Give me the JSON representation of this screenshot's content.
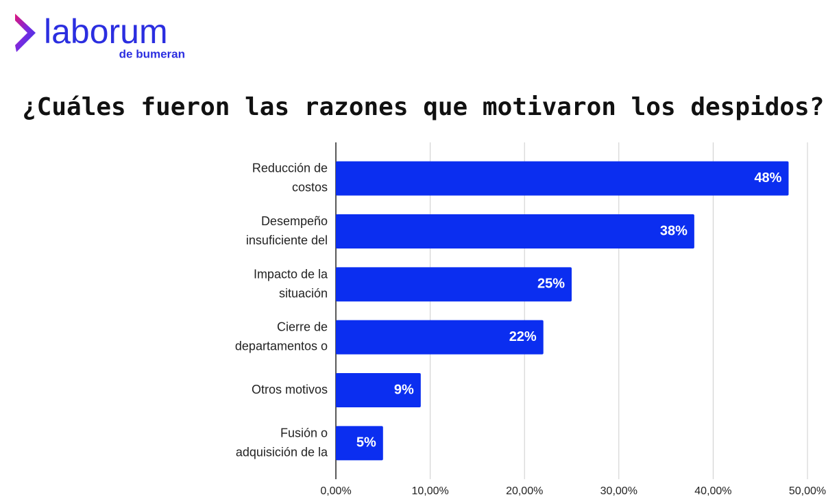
{
  "logo": {
    "name": "laborum",
    "tagline": "de bumeran"
  },
  "chart_data": {
    "type": "barh",
    "title": "¿Cuáles fueron las razones que motivaron los despidos?",
    "categories": [
      [
        "Reducción de",
        "costos"
      ],
      [
        "Desempeño",
        "insuficiente del"
      ],
      [
        "Impacto de la",
        "situación"
      ],
      [
        "Cierre de",
        "departamentos o"
      ],
      [
        "Otros motivos"
      ],
      [
        "Fusión o",
        "adquisición de la"
      ]
    ],
    "values": [
      48,
      38,
      25,
      22,
      9,
      5
    ],
    "value_labels": [
      "48%",
      "38%",
      "25%",
      "22%",
      "9%",
      "5%"
    ],
    "color": "#0b2ef0",
    "xlim": [
      0,
      50
    ],
    "xticks": [
      {
        "value": 0,
        "label": "0,00%"
      },
      {
        "value": 10,
        "label": "10,00%"
      },
      {
        "value": 20,
        "label": "20,00%"
      },
      {
        "value": 30,
        "label": "30,00%"
      },
      {
        "value": 40,
        "label": "40,00%"
      },
      {
        "value": 50,
        "label": "50,00%"
      }
    ],
    "grid": true
  }
}
